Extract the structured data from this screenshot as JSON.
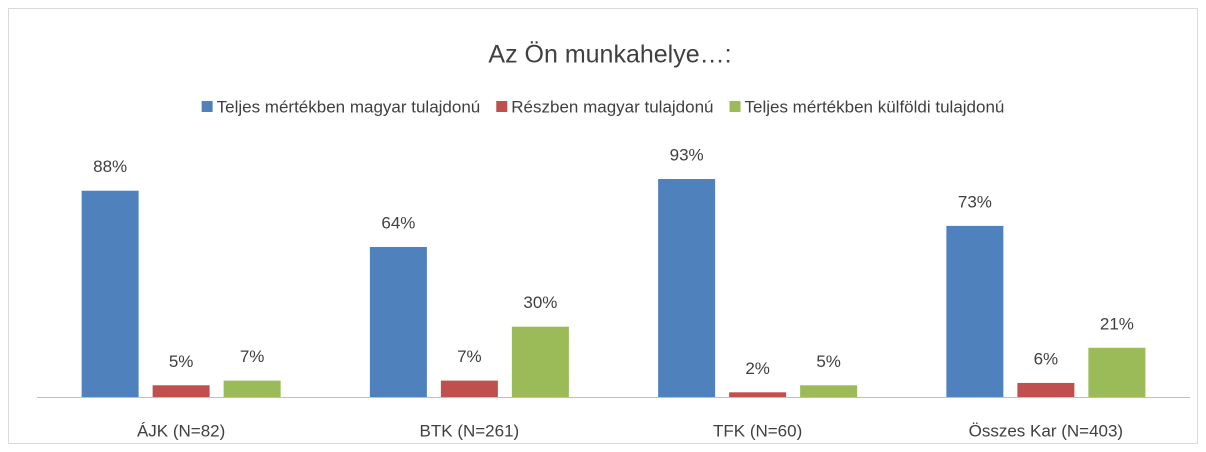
{
  "chart_data": {
    "type": "bar",
    "title": "Az Ön munkahelye…:",
    "categories": [
      "ÁJK (N=82)",
      "BTK (N=261)",
      "TFK (N=60)",
      "Összes Kar (N=403)"
    ],
    "series": [
      {
        "name": "Teljes mértékben magyar tulajdonú",
        "color": "#4f81bd",
        "values": [
          88,
          64,
          93,
          73
        ],
        "value_labels": [
          "88%",
          "64%",
          "93%",
          "73%"
        ]
      },
      {
        "name": "Részben magyar tulajdonú",
        "color": "#c0504d",
        "values": [
          5,
          7,
          2,
          6
        ],
        "value_labels": [
          "5%",
          "7%",
          "2%",
          "6%"
        ]
      },
      {
        "name": "Teljes mértékben külföldi tulajdonú",
        "color": "#9bbb59",
        "values": [
          7,
          30,
          5,
          21
        ],
        "value_labels": [
          "7%",
          "30%",
          "5%",
          "21%"
        ]
      }
    ],
    "legend": "top"
  }
}
